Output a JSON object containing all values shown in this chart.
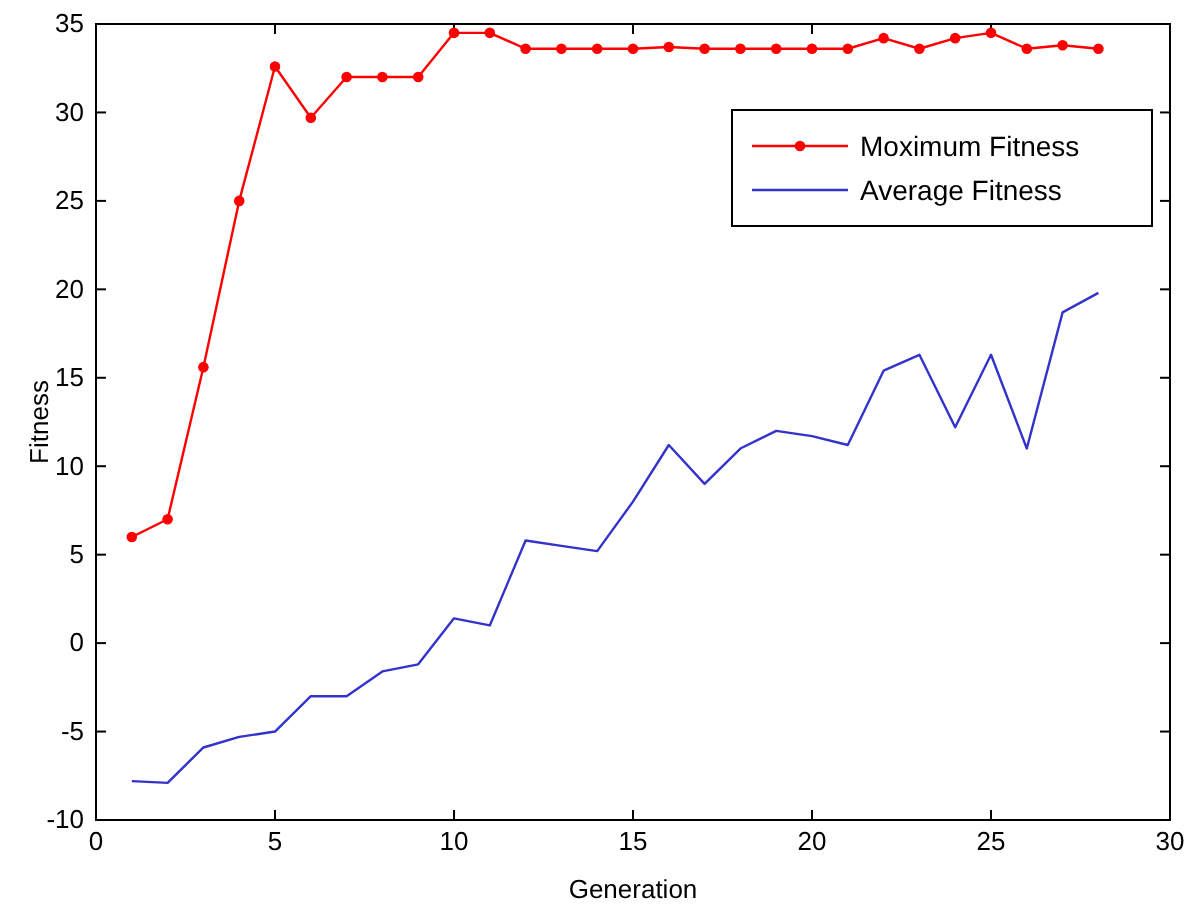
{
  "chart_data": {
    "type": "line",
    "xlabel": "Generation",
    "ylabel": "Fitness",
    "x": [
      1,
      2,
      3,
      4,
      5,
      6,
      7,
      8,
      9,
      10,
      11,
      12,
      13,
      14,
      15,
      16,
      17,
      18,
      19,
      20,
      21,
      22,
      23,
      24,
      25,
      26,
      27,
      28
    ],
    "series": [
      {
        "name": "Moximum Fitness",
        "color": "#ff0000",
        "marker": "circle",
        "values": [
          6,
          7,
          15.6,
          25,
          32.6,
          29.7,
          32,
          32,
          32,
          34.5,
          34.5,
          33.6,
          33.6,
          33.6,
          33.6,
          33.7,
          33.6,
          33.6,
          33.6,
          33.6,
          33.6,
          34.2,
          33.6,
          34.2,
          34.5,
          33.6,
          33.8,
          33.6
        ]
      },
      {
        "name": "Average Fitness",
        "color": "#3333cc",
        "values": [
          -7.8,
          -7.9,
          -5.9,
          -5.3,
          -5,
          -3,
          -3,
          -1.6,
          -1.2,
          1.4,
          1,
          5.8,
          5.5,
          5.2,
          8,
          11.2,
          9,
          11,
          12,
          11.7,
          11.2,
          15.4,
          16.3,
          12.2,
          16.3,
          11,
          18.7,
          19.8
        ]
      }
    ],
    "xlim": [
      0,
      30
    ],
    "xticks": [
      0,
      5,
      10,
      15,
      20,
      25,
      30
    ],
    "ylim": [
      -10,
      35
    ],
    "yticks": [
      -10,
      -5,
      0,
      5,
      10,
      15,
      20,
      25,
      30,
      35
    ],
    "grid": false,
    "legend": "top right",
    "line_style": "solid"
  }
}
